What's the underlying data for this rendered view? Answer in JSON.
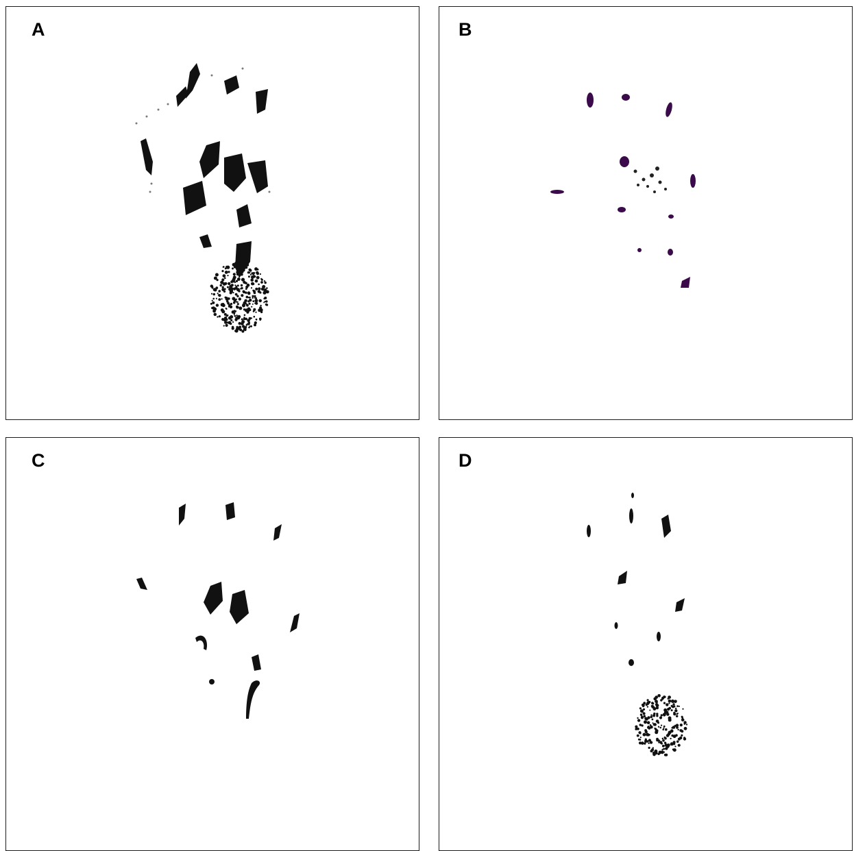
{
  "panels": [
    {
      "label": "A"
    },
    {
      "label": "B"
    },
    {
      "label": "C"
    },
    {
      "label": "D"
    }
  ],
  "colors": {
    "ink": "#111111",
    "ink_purple": "#3a0a4a",
    "border": "#1a1a1a",
    "background": "#ffffff"
  }
}
